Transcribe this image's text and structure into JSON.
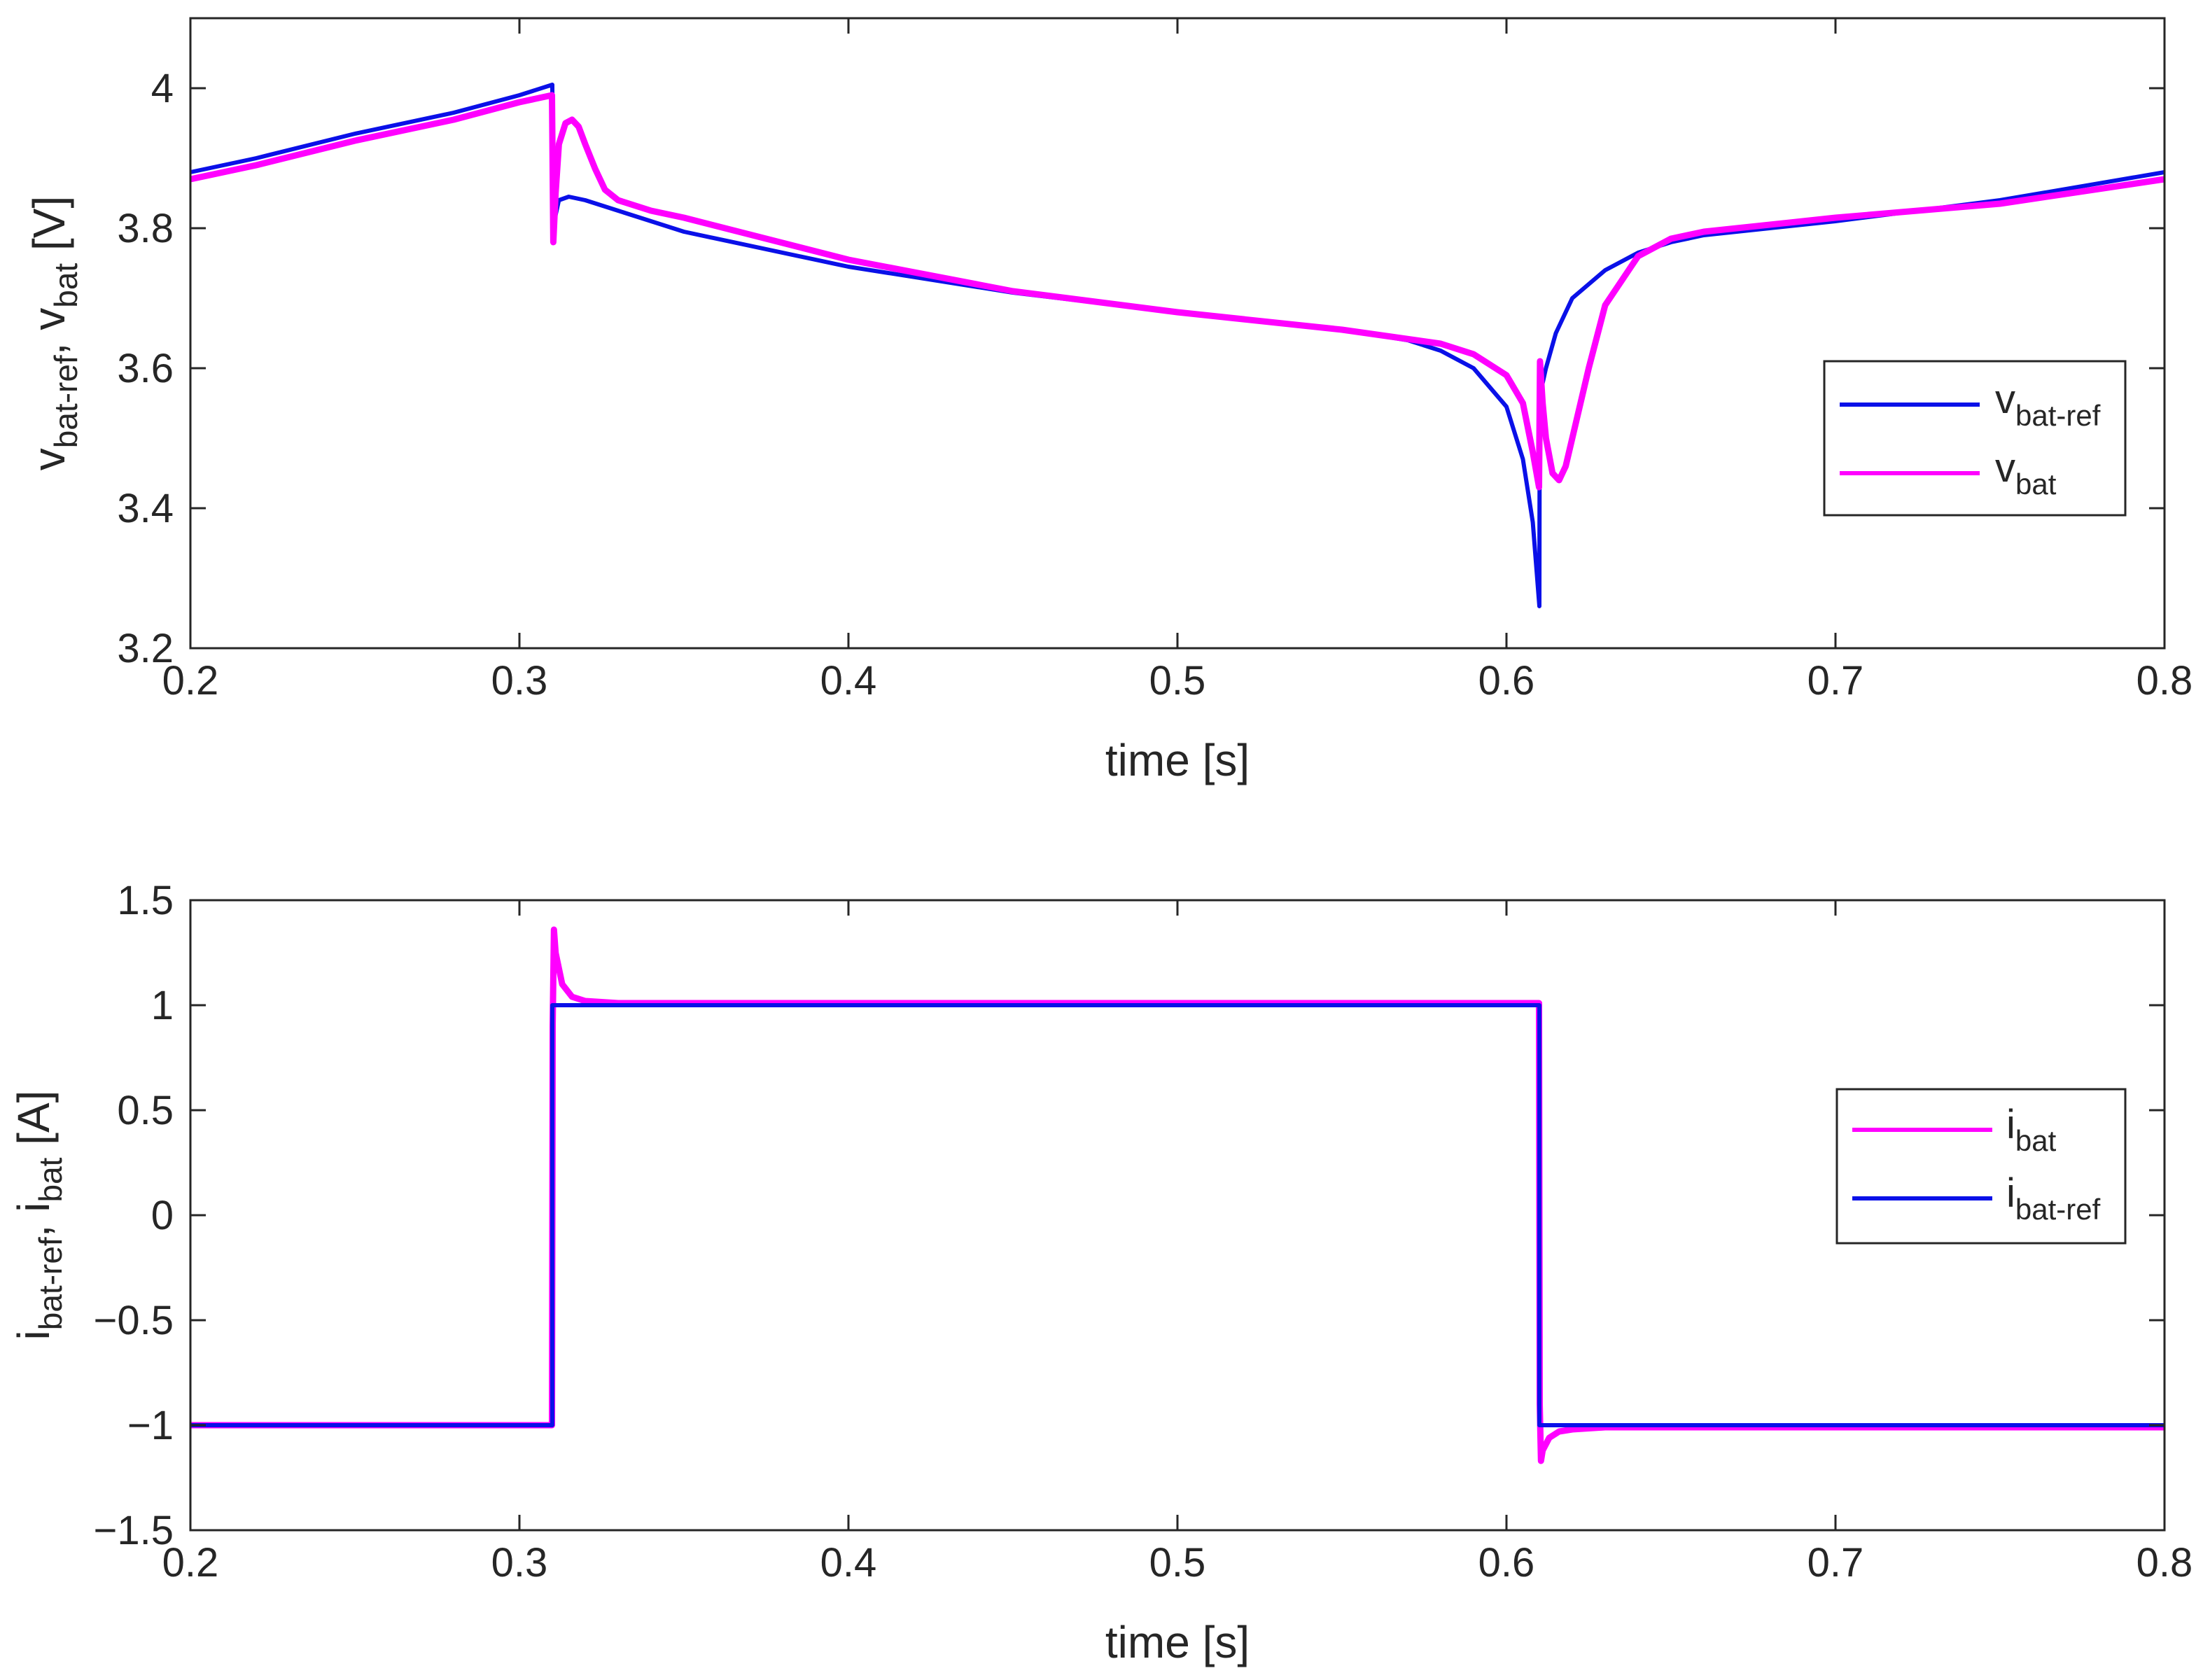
{
  "colors": {
    "blue": "#0a10e8",
    "magenta": "#ff00ff",
    "axis": "#262626",
    "grid_none": "#ffffff"
  },
  "chart_data": [
    {
      "type": "line",
      "title": "",
      "xlabel": "time [s]",
      "ylabel": {
        "base1": "v",
        "sub1": "bat-ref",
        "sep": ", ",
        "base2": "v",
        "sub2": "bat",
        "unit": " [V]"
      },
      "xlim": [
        0.2,
        0.8
      ],
      "ylim": [
        3.2,
        4.1
      ],
      "xticks": [
        0.2,
        0.3,
        0.4,
        0.5,
        0.6,
        0.7,
        0.8
      ],
      "xtick_labels": [
        "0.2",
        "0.3",
        "0.4",
        "0.5",
        "0.6",
        "0.7",
        "0.8"
      ],
      "yticks": [
        3.2,
        3.4,
        3.6,
        3.8,
        4.0
      ],
      "ytick_labels": [
        "3.2",
        "3.4",
        "3.6",
        "3.8",
        "4"
      ],
      "grid": false,
      "legend": {
        "placement": "right",
        "entries": [
          {
            "base": "v",
            "sub": "bat-ref",
            "color": "#0a10e8"
          },
          {
            "base": "v",
            "sub": "bat",
            "color": "#ff00ff"
          }
        ]
      },
      "series": [
        {
          "name": "v_bat-ref",
          "color": "#0a10e8",
          "x": [
            0.2,
            0.22,
            0.25,
            0.28,
            0.3,
            0.31,
            0.3101,
            0.312,
            0.315,
            0.32,
            0.33,
            0.35,
            0.4,
            0.45,
            0.5,
            0.55,
            0.57,
            0.58,
            0.59,
            0.6,
            0.605,
            0.608,
            0.61,
            0.6101,
            0.612,
            0.615,
            0.62,
            0.63,
            0.64,
            0.65,
            0.66,
            0.7,
            0.75,
            0.8
          ],
          "y": [
            3.88,
            3.9,
            3.935,
            3.965,
            3.99,
            4.005,
            3.8,
            3.84,
            3.845,
            3.84,
            3.825,
            3.795,
            3.745,
            3.708,
            3.68,
            3.655,
            3.64,
            3.625,
            3.6,
            3.545,
            3.47,
            3.38,
            3.26,
            3.56,
            3.6,
            3.65,
            3.7,
            3.74,
            3.765,
            3.78,
            3.79,
            3.81,
            3.84,
            3.88
          ]
        },
        {
          "name": "v_bat",
          "color": "#ff00ff",
          "x": [
            0.2,
            0.22,
            0.25,
            0.28,
            0.3,
            0.3099,
            0.3103,
            0.311,
            0.312,
            0.314,
            0.316,
            0.318,
            0.32,
            0.323,
            0.326,
            0.33,
            0.34,
            0.35,
            0.4,
            0.45,
            0.5,
            0.55,
            0.58,
            0.59,
            0.6,
            0.605,
            0.608,
            0.6099,
            0.6102,
            0.611,
            0.612,
            0.614,
            0.616,
            0.618,
            0.62,
            0.625,
            0.63,
            0.64,
            0.65,
            0.66,
            0.7,
            0.75,
            0.8
          ],
          "y": [
            3.87,
            3.89,
            3.925,
            3.955,
            3.98,
            3.99,
            3.78,
            3.85,
            3.92,
            3.95,
            3.955,
            3.945,
            3.92,
            3.885,
            3.855,
            3.84,
            3.825,
            3.815,
            3.755,
            3.71,
            3.68,
            3.655,
            3.635,
            3.62,
            3.59,
            3.55,
            3.48,
            3.43,
            3.61,
            3.55,
            3.5,
            3.45,
            3.44,
            3.46,
            3.5,
            3.6,
            3.69,
            3.76,
            3.785,
            3.795,
            3.815,
            3.835,
            3.87
          ]
        }
      ]
    },
    {
      "type": "line",
      "title": "",
      "xlabel": "time [s]",
      "ylabel": {
        "base1": "i",
        "sub1": "bat-ref",
        "sep": ", ",
        "base2": "i",
        "sub2": "bat",
        "unit": " [A]"
      },
      "xlim": [
        0.2,
        0.8
      ],
      "ylim": [
        -1.5,
        1.5
      ],
      "xticks": [
        0.2,
        0.3,
        0.4,
        0.5,
        0.6,
        0.7,
        0.8
      ],
      "xtick_labels": [
        "0.2",
        "0.3",
        "0.4",
        "0.5",
        "0.6",
        "0.7",
        "0.8"
      ],
      "yticks": [
        -1.5,
        -1,
        -0.5,
        0,
        0.5,
        1,
        1.5
      ],
      "ytick_labels": [
        "−1.5",
        "−1",
        "−0.5",
        "0",
        "0.5",
        "1",
        "1.5"
      ],
      "grid": false,
      "legend": {
        "placement": "right",
        "entries": [
          {
            "base": "i",
            "sub": "bat",
            "color": "#ff00ff"
          },
          {
            "base": "i",
            "sub": "bat-ref",
            "color": "#0a10e8"
          }
        ]
      },
      "series": [
        {
          "name": "i_bat",
          "color": "#ff00ff",
          "x": [
            0.2,
            0.3099,
            0.3101,
            0.3105,
            0.311,
            0.313,
            0.316,
            0.32,
            0.33,
            0.5,
            0.6099,
            0.6101,
            0.6105,
            0.611,
            0.613,
            0.616,
            0.62,
            0.63,
            0.8
          ],
          "y": [
            -1.0,
            -1.0,
            0.9,
            1.36,
            1.25,
            1.1,
            1.04,
            1.02,
            1.01,
            1.01,
            1.01,
            -0.9,
            -1.17,
            -1.12,
            -1.06,
            -1.03,
            -1.02,
            -1.01,
            -1.01
          ]
        },
        {
          "name": "i_bat-ref",
          "color": "#0a10e8",
          "x": [
            0.2,
            0.31,
            0.31,
            0.61,
            0.61,
            0.8
          ],
          "y": [
            -1,
            -1,
            1,
            1,
            -1,
            -1
          ]
        }
      ]
    }
  ]
}
